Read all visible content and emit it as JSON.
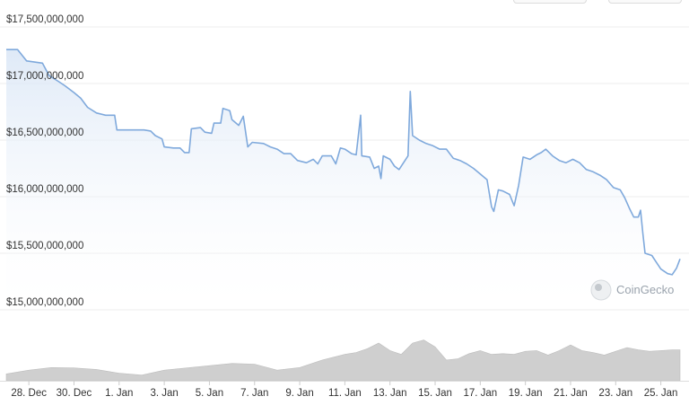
{
  "watermark": {
    "text": "CoinGecko",
    "icon": "gecko-logo-icon"
  },
  "colors": {
    "line": "#7fa9dc",
    "area_top": "#e3edf8",
    "volume": "#cfcfcf",
    "grid": "#ececec"
  },
  "chart_data": {
    "type": "area",
    "title": "",
    "xlabel": "",
    "ylabel": "",
    "grid": true,
    "y_ticks": [
      "$17,500,000,000",
      "$17,000,000,000",
      "$16,500,000,000",
      "$16,000,000,000",
      "$15,500,000,000",
      "$15,000,000,000"
    ],
    "y_tick_values": [
      17500000000,
      17000000000,
      16500000000,
      16000000000,
      15500000000,
      15000000000
    ],
    "x_ticks": [
      "28. Dec",
      "30. Dec",
      "1. Jan",
      "3. Jan",
      "5. Jan",
      "7. Jan",
      "9. Jan",
      "11. Jan",
      "13. Jan",
      "15. Jan",
      "17. Jan",
      "19. Jan",
      "21. Jan",
      "23. Jan",
      "25. Jan"
    ],
    "x_tick_days": [
      1,
      3,
      5,
      7,
      9,
      11,
      13,
      15,
      17,
      19,
      21,
      23,
      25,
      27,
      29
    ],
    "x_range_days": [
      0,
      29.85
    ],
    "ylim": [
      15000000000,
      17500000000
    ],
    "series": [
      {
        "points": [
          [
            0.0,
            17300000000
          ],
          [
            0.5,
            17300000000
          ],
          [
            0.9,
            17200000000
          ],
          [
            1.6,
            17180000000
          ],
          [
            1.9,
            17070000000
          ],
          [
            2.3,
            17020000000
          ],
          [
            2.6,
            16980000000
          ],
          [
            3.0,
            16920000000
          ],
          [
            3.3,
            16870000000
          ],
          [
            3.6,
            16790000000
          ],
          [
            4.0,
            16740000000
          ],
          [
            4.4,
            16720000000
          ],
          [
            4.8,
            16720000000
          ],
          [
            4.9,
            16590000000
          ],
          [
            5.5,
            16590000000
          ],
          [
            6.1,
            16590000000
          ],
          [
            6.4,
            16580000000
          ],
          [
            6.6,
            16540000000
          ],
          [
            6.9,
            16510000000
          ],
          [
            7.0,
            16440000000
          ],
          [
            7.4,
            16430000000
          ],
          [
            7.7,
            16430000000
          ],
          [
            7.9,
            16390000000
          ],
          [
            8.1,
            16390000000
          ],
          [
            8.2,
            16600000000
          ],
          [
            8.6,
            16610000000
          ],
          [
            8.8,
            16570000000
          ],
          [
            9.1,
            16560000000
          ],
          [
            9.2,
            16650000000
          ],
          [
            9.5,
            16650000000
          ],
          [
            9.6,
            16780000000
          ],
          [
            9.9,
            16760000000
          ],
          [
            10.0,
            16680000000
          ],
          [
            10.3,
            16630000000
          ],
          [
            10.5,
            16710000000
          ],
          [
            10.7,
            16440000000
          ],
          [
            10.9,
            16480000000
          ],
          [
            11.4,
            16470000000
          ],
          [
            11.7,
            16440000000
          ],
          [
            12.0,
            16420000000
          ],
          [
            12.3,
            16380000000
          ],
          [
            12.6,
            16380000000
          ],
          [
            12.9,
            16320000000
          ],
          [
            13.3,
            16300000000
          ],
          [
            13.6,
            16330000000
          ],
          [
            13.8,
            16290000000
          ],
          [
            14.0,
            16360000000
          ],
          [
            14.4,
            16360000000
          ],
          [
            14.6,
            16290000000
          ],
          [
            14.8,
            16430000000
          ],
          [
            15.0,
            16420000000
          ],
          [
            15.3,
            16380000000
          ],
          [
            15.5,
            16370000000
          ],
          [
            15.7,
            16720000000
          ],
          [
            15.75,
            16360000000
          ],
          [
            16.1,
            16350000000
          ],
          [
            16.3,
            16250000000
          ],
          [
            16.5,
            16270000000
          ],
          [
            16.6,
            16160000000
          ],
          [
            16.7,
            16360000000
          ],
          [
            17.0,
            16330000000
          ],
          [
            17.2,
            16270000000
          ],
          [
            17.4,
            16240000000
          ],
          [
            17.6,
            16300000000
          ],
          [
            17.8,
            16360000000
          ],
          [
            17.9,
            16930000000
          ],
          [
            18.0,
            16540000000
          ],
          [
            18.3,
            16500000000
          ],
          [
            18.6,
            16470000000
          ],
          [
            18.9,
            16450000000
          ],
          [
            19.2,
            16420000000
          ],
          [
            19.5,
            16420000000
          ],
          [
            19.8,
            16340000000
          ],
          [
            20.1,
            16320000000
          ],
          [
            20.4,
            16290000000
          ],
          [
            20.7,
            16250000000
          ],
          [
            21.0,
            16200000000
          ],
          [
            21.3,
            16150000000
          ],
          [
            21.5,
            15910000000
          ],
          [
            21.6,
            15870000000
          ],
          [
            21.8,
            16060000000
          ],
          [
            22.0,
            16050000000
          ],
          [
            22.3,
            16020000000
          ],
          [
            22.5,
            15920000000
          ],
          [
            22.7,
            16100000000
          ],
          [
            22.9,
            16350000000
          ],
          [
            23.2,
            16330000000
          ],
          [
            23.5,
            16370000000
          ],
          [
            23.7,
            16390000000
          ],
          [
            23.9,
            16420000000
          ],
          [
            24.2,
            16360000000
          ],
          [
            24.5,
            16320000000
          ],
          [
            24.8,
            16300000000
          ],
          [
            25.1,
            16330000000
          ],
          [
            25.4,
            16300000000
          ],
          [
            25.7,
            16240000000
          ],
          [
            26.0,
            16220000000
          ],
          [
            26.3,
            16190000000
          ],
          [
            26.6,
            16150000000
          ],
          [
            26.9,
            16080000000
          ],
          [
            27.2,
            16060000000
          ],
          [
            27.4,
            15990000000
          ],
          [
            27.6,
            15900000000
          ],
          [
            27.8,
            15820000000
          ],
          [
            28.0,
            15820000000
          ],
          [
            28.1,
            15880000000
          ],
          [
            28.2,
            15680000000
          ],
          [
            28.3,
            15500000000
          ],
          [
            28.6,
            15480000000
          ],
          [
            28.8,
            15420000000
          ],
          [
            29.0,
            15360000000
          ],
          [
            29.3,
            15320000000
          ],
          [
            29.5,
            15310000000
          ],
          [
            29.7,
            15370000000
          ],
          [
            29.85,
            15450000000
          ]
        ]
      }
    ],
    "volume_series": {
      "points": [
        [
          0,
          0.18
        ],
        [
          1,
          0.28
        ],
        [
          2,
          0.35
        ],
        [
          3,
          0.34
        ],
        [
          4,
          0.3
        ],
        [
          5,
          0.2
        ],
        [
          6,
          0.15
        ],
        [
          7,
          0.28
        ],
        [
          8,
          0.34
        ],
        [
          9,
          0.4
        ],
        [
          10,
          0.46
        ],
        [
          11,
          0.44
        ],
        [
          12,
          0.28
        ],
        [
          13,
          0.35
        ],
        [
          14,
          0.55
        ],
        [
          15,
          0.7
        ],
        [
          15.5,
          0.75
        ],
        [
          16,
          0.85
        ],
        [
          16.5,
          1.0
        ],
        [
          17,
          0.8
        ],
        [
          17.5,
          0.7
        ],
        [
          18,
          1.0
        ],
        [
          18.5,
          1.08
        ],
        [
          19,
          0.9
        ],
        [
          19.5,
          0.55
        ],
        [
          20,
          0.58
        ],
        [
          20.5,
          0.72
        ],
        [
          21,
          0.8
        ],
        [
          21.5,
          0.7
        ],
        [
          22,
          0.72
        ],
        [
          22.5,
          0.7
        ],
        [
          23,
          0.78
        ],
        [
          23.5,
          0.8
        ],
        [
          24,
          0.68
        ],
        [
          24.5,
          0.8
        ],
        [
          25,
          0.95
        ],
        [
          25.5,
          0.8
        ],
        [
          26,
          0.75
        ],
        [
          26.5,
          0.68
        ],
        [
          27,
          0.78
        ],
        [
          27.5,
          0.88
        ],
        [
          28,
          0.82
        ],
        [
          28.5,
          0.78
        ],
        [
          29,
          0.8
        ],
        [
          29.5,
          0.82
        ],
        [
          29.85,
          0.82
        ]
      ]
    }
  }
}
